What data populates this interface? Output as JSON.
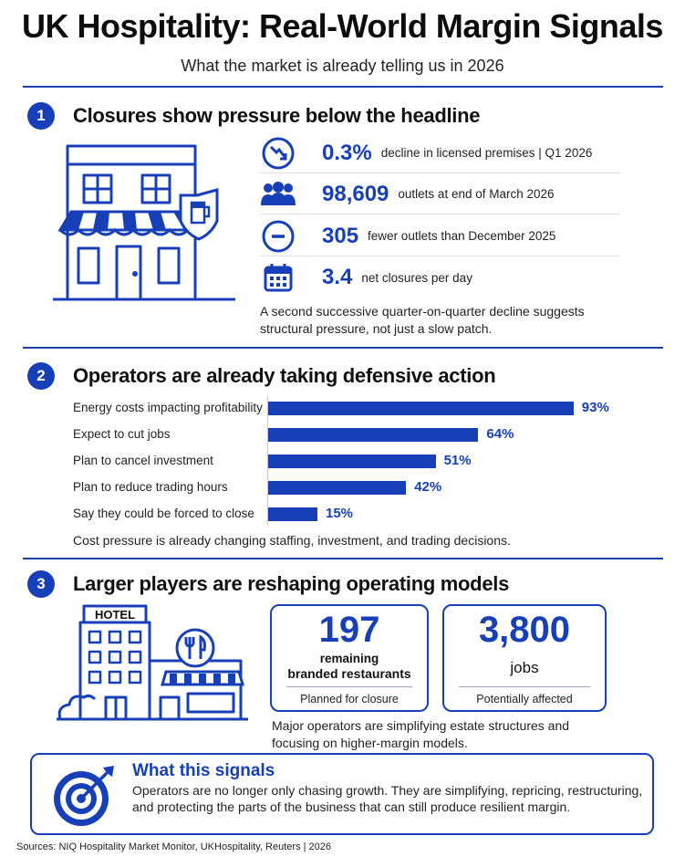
{
  "header": {
    "title": "UK Hospitality: Real-World Margin Signals",
    "subtitle": "What the market is already telling us in 2026"
  },
  "section1": {
    "number": "1",
    "title": "Closures show pressure below the headline",
    "stats": [
      {
        "icon": "trend-down-icon",
        "value": "0.3%",
        "label": "decline in licensed premises | Q1 2026"
      },
      {
        "icon": "people-icon",
        "value": "98,609",
        "label": "outlets at end of March 2026"
      },
      {
        "icon": "minus-circle-icon",
        "value": "305",
        "label": "fewer outlets than December 2025"
      },
      {
        "icon": "calendar-icon",
        "value": "3.4",
        "label": "net closures per day"
      }
    ],
    "note": "A second successive quarter-on-quarter decline suggests structural pressure, not just a slow patch."
  },
  "section2": {
    "number": "2",
    "title": "Operators are already taking defensive action",
    "note": "Cost pressure is already changing staffing, investment, and trading decisions."
  },
  "chart_data": {
    "type": "bar",
    "orientation": "horizontal",
    "categories": [
      "Energy costs impacting profitability",
      "Expect to cut jobs",
      "Plan to cancel investment",
      "Plan to reduce trading hours",
      "Say they could be forced to close"
    ],
    "values": [
      93,
      64,
      51,
      42,
      15
    ],
    "value_labels": [
      "93%",
      "64%",
      "51%",
      "42%",
      "15%"
    ],
    "xlim": [
      0,
      100
    ],
    "grid": false,
    "bar_color": "#1740b8"
  },
  "section3": {
    "number": "3",
    "title": "Larger players are reshaping operating models",
    "hotel_sign": "HOTEL",
    "cards": [
      {
        "value": "197",
        "label_line1": "remaining",
        "label_line2": "branded restaurants",
        "foot": "Planned for closure"
      },
      {
        "value": "3,800",
        "label_line1": "jobs",
        "label_line2": "",
        "foot": "Potentially affected"
      }
    ],
    "note": "Major operators are simplifying estate structures and focusing on higher-margin models."
  },
  "signals": {
    "title": "What this signals",
    "text": "Operators are no longer only chasing growth. They are simplifying, repricing, restructuring, and protecting the parts of the business that can still produce resilient margin."
  },
  "footer": {
    "sources": "Sources: NIQ Hospitality Market Monitor, UKHospitality, Reuters  |  2026"
  },
  "colors": {
    "accent": "#1740b8",
    "rule": "#1b3fa8"
  }
}
